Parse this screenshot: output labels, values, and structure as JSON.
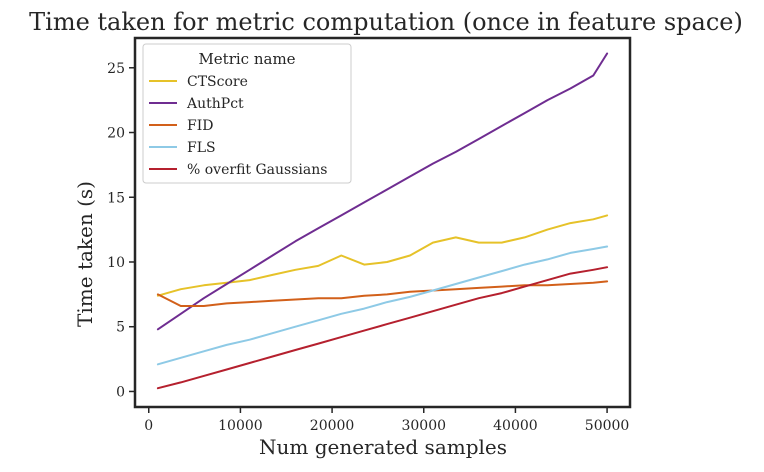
{
  "chart_data": {
    "type": "line",
    "title": "Time taken for metric computation (once in feature space)",
    "xlabel": "Num generated samples",
    "ylabel": "Time taken (s)",
    "xlim": [
      -1500,
      52500
    ],
    "ylim": [
      -1.2,
      27.3
    ],
    "xticks": [
      0,
      10000,
      20000,
      30000,
      40000,
      50000
    ],
    "xtick_labels": [
      "0",
      "10000",
      "20000",
      "30000",
      "40000",
      "50000"
    ],
    "yticks": [
      0,
      5,
      10,
      15,
      20,
      25
    ],
    "ytick_labels": [
      "0",
      "5",
      "10",
      "15",
      "20",
      "25"
    ],
    "grid": false,
    "legend": {
      "title": "Metric name",
      "placement": "top-left"
    },
    "x": [
      1000,
      3500,
      6000,
      8500,
      11000,
      13500,
      16000,
      18500,
      21000,
      23500,
      26000,
      28500,
      31000,
      33500,
      36000,
      38500,
      41000,
      43500,
      46000,
      48500,
      50000
    ],
    "series": [
      {
        "name": "CTScore",
        "color": "#e6c229",
        "values": [
          7.4,
          7.9,
          8.2,
          8.4,
          8.6,
          9.0,
          9.4,
          9.7,
          10.5,
          9.8,
          10.0,
          10.5,
          11.5,
          11.9,
          11.5,
          11.5,
          11.9,
          12.5,
          13.0,
          13.3,
          13.6
        ]
      },
      {
        "name": "AuthPct",
        "color": "#6f2d91",
        "values": [
          4.8,
          6.0,
          7.2,
          8.3,
          9.4,
          10.5,
          11.6,
          12.6,
          13.6,
          14.6,
          15.6,
          16.6,
          17.6,
          18.5,
          19.5,
          20.5,
          21.5,
          22.5,
          23.4,
          24.4,
          26.1
        ]
      },
      {
        "name": "FID",
        "color": "#d2601a",
        "values": [
          7.5,
          6.6,
          6.6,
          6.8,
          6.9,
          7.0,
          7.1,
          7.2,
          7.2,
          7.4,
          7.5,
          7.7,
          7.8,
          7.9,
          8.0,
          8.1,
          8.2,
          8.2,
          8.3,
          8.4,
          8.5
        ]
      },
      {
        "name": "FLS",
        "color": "#8ecae6",
        "values": [
          2.1,
          2.6,
          3.1,
          3.6,
          4.0,
          4.5,
          5.0,
          5.5,
          6.0,
          6.4,
          6.9,
          7.3,
          7.8,
          8.3,
          8.8,
          9.3,
          9.8,
          10.2,
          10.7,
          11.0,
          11.2
        ]
      },
      {
        "name": "% overfit Gaussians",
        "color": "#b5202e",
        "values": [
          0.25,
          0.7,
          1.2,
          1.7,
          2.2,
          2.7,
          3.2,
          3.7,
          4.2,
          4.7,
          5.2,
          5.7,
          6.2,
          6.7,
          7.2,
          7.6,
          8.1,
          8.6,
          9.1,
          9.4,
          9.6
        ]
      }
    ]
  }
}
